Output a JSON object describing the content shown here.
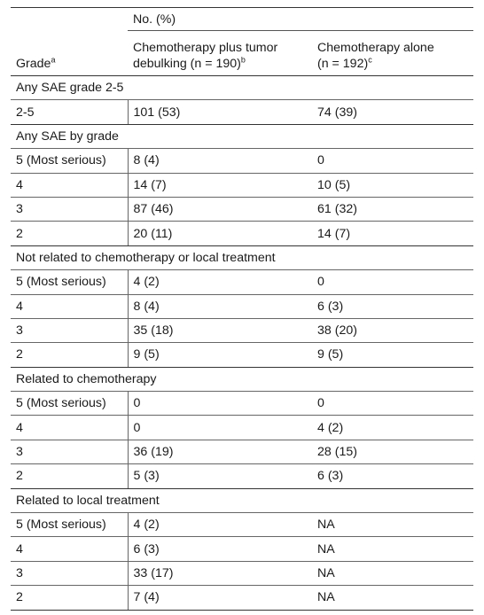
{
  "header": {
    "grade_label": "Grade",
    "grade_sup": "a",
    "pct_label": "No. (%)",
    "col2_line1": "Chemotherapy plus tumor",
    "col2_line2": "debulking (n = 190)",
    "col2_sup": "b",
    "col3_line1": "Chemotherapy alone",
    "col3_line2": "(n = 192)",
    "col3_sup": "c"
  },
  "sections": [
    {
      "title": "Any SAE grade 2-5",
      "rows": [
        {
          "grade": "2-5",
          "combo": "101 (53)",
          "alone": "74 (39)"
        }
      ]
    },
    {
      "title": "Any SAE by grade",
      "rows": [
        {
          "grade": "5 (Most serious)",
          "combo": "8 (4)",
          "alone": "0"
        },
        {
          "grade": "4",
          "combo": "14 (7)",
          "alone": "10 (5)"
        },
        {
          "grade": "3",
          "combo": "87 (46)",
          "alone": "61 (32)"
        },
        {
          "grade": "2",
          "combo": "20 (11)",
          "alone": "14 (7)"
        }
      ]
    },
    {
      "title": "Not related to chemotherapy or local treatment",
      "rows": [
        {
          "grade": "5 (Most serious)",
          "combo": "4 (2)",
          "alone": "0"
        },
        {
          "grade": "4",
          "combo": "8 (4)",
          "alone": "6 (3)"
        },
        {
          "grade": "3",
          "combo": "35 (18)",
          "alone": "38 (20)"
        },
        {
          "grade": "2",
          "combo": "9 (5)",
          "alone": "9 (5)"
        }
      ]
    },
    {
      "title": "Related to chemotherapy",
      "rows": [
        {
          "grade": "5 (Most serious)",
          "combo": "0",
          "alone": "0"
        },
        {
          "grade": "4",
          "combo": "0",
          "alone": "4 (2)"
        },
        {
          "grade": "3",
          "combo": "36 (19)",
          "alone": "28 (15)"
        },
        {
          "grade": "2",
          "combo": "5 (3)",
          "alone": "6 (3)"
        }
      ]
    },
    {
      "title": "Related to local treatment",
      "rows": [
        {
          "grade": "5 (Most serious)",
          "combo": "4 (2)",
          "alone": "NA"
        },
        {
          "grade": "4",
          "combo": "6 (3)",
          "alone": "NA"
        },
        {
          "grade": "3",
          "combo": "33 (17)",
          "alone": "NA"
        },
        {
          "grade": "2",
          "combo": "7 (4)",
          "alone": "NA"
        }
      ]
    }
  ]
}
